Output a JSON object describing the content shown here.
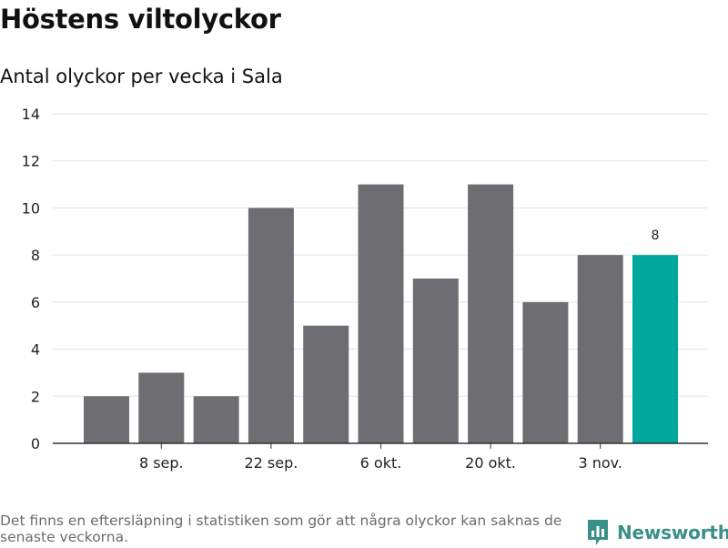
{
  "chart_data": {
    "type": "bar",
    "title": "Höstens viltolyckor",
    "subtitle": "Antal olyckor per vecka i Sala",
    "categories": [
      "",
      "8 sep.",
      "",
      "22 sep.",
      "",
      "6 okt.",
      "",
      "20 okt.",
      "",
      "3 nov.",
      ""
    ],
    "x_tick_labels": [
      "8 sep.",
      "22 sep.",
      "6 okt.",
      "20 okt.",
      "3 nov."
    ],
    "values": [
      2,
      3,
      2,
      10,
      5,
      11,
      7,
      11,
      6,
      8,
      8
    ],
    "highlight_index": 10,
    "highlight_label": "8",
    "ylim": [
      0,
      14
    ],
    "y_ticks": [
      0,
      2,
      4,
      6,
      8,
      10,
      12,
      14
    ],
    "grid": true,
    "colors": {
      "bar": "#6e6d72",
      "highlight": "#00a79d",
      "grid": "#e3e3e3",
      "axis": "#333333"
    }
  },
  "footnote": "Det finns en eftersläpning i statistiken som gör att några olyckor kan saknas de senaste veckorna.",
  "brand": {
    "name": "Newsworthy",
    "icon": "bar-chart-logo-icon",
    "color": "#3a8f88"
  }
}
